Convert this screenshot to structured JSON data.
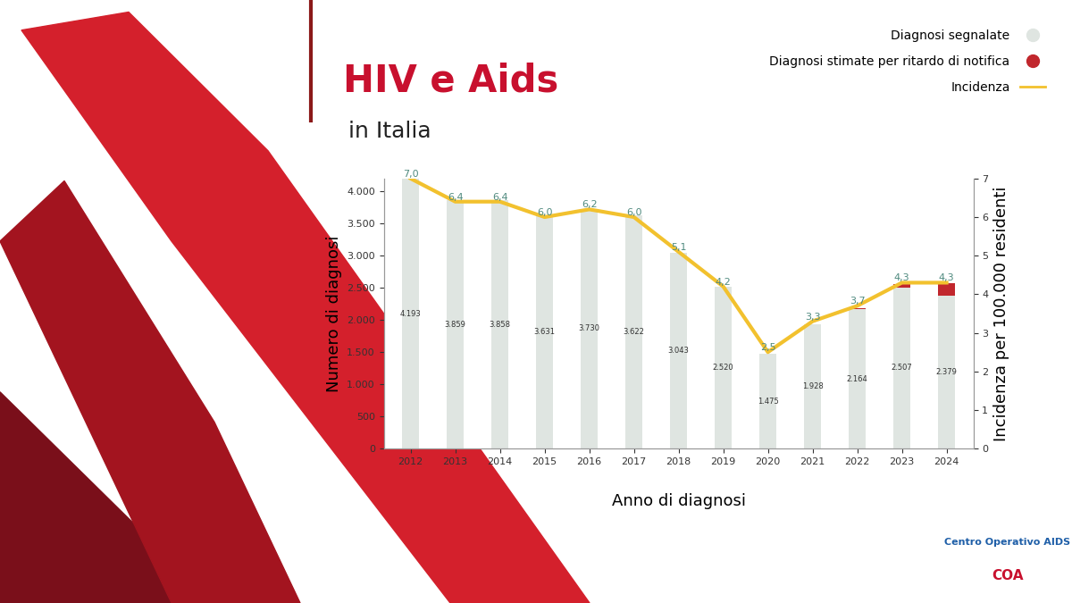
{
  "chart_data": {
    "type": "bar",
    "title": "HIV e Aids",
    "subtitle": "in Italia",
    "x_label": "Anno di diagnosi",
    "y_label": "Numero di diagnosi",
    "y2_label": "Incidenza per 100.000 residenti",
    "categories": [
      "2012",
      "2013",
      "2014",
      "2015",
      "2016",
      "2017",
      "2018",
      "2019",
      "2020",
      "2021",
      "2022",
      "2023",
      "2024"
    ],
    "stacked": true,
    "legend": "upper right",
    "grid": false,
    "series": [
      {
        "name": "Diagnosi segnalate",
        "type": "bar",
        "color": "#dfe5e1",
        "data_labels": true,
        "values": [
          4193,
          3859,
          3858,
          3631,
          3730,
          3622,
          3043,
          2520,
          1475,
          1928,
          2164,
          2507,
          2379
        ],
        "value_labels": [
          "4.193",
          "3.859",
          "3.858",
          "3.631",
          "3.730",
          "3.622",
          "3.043",
          "2.520",
          "1.475",
          "1.928",
          "2.164",
          "2.507",
          "2.379"
        ]
      },
      {
        "name": "Diagnosi stimate per ritardo di notifica",
        "type": "bar",
        "color": "#c1272d",
        "data_labels": false,
        "values": [
          0,
          0,
          0,
          0,
          0,
          0,
          0,
          0,
          0,
          0,
          25,
          50,
          190
        ]
      },
      {
        "name": "Incidenza",
        "type": "line",
        "axis": "y2",
        "color": "#f2c12e",
        "data_labels": true,
        "values": [
          7.0,
          6.4,
          6.4,
          6.0,
          6.2,
          6.0,
          5.1,
          4.2,
          2.5,
          3.3,
          3.7,
          4.3,
          4.3
        ],
        "value_labels": [
          "7,0",
          "6,4",
          "6,4",
          "6,0",
          "6,2",
          "6,0",
          "5,1",
          "4,2",
          "2,5",
          "3,3",
          "3,7",
          "4,3",
          "4,3"
        ]
      }
    ],
    "ylim": [
      0,
      4200
    ],
    "yticks": [
      0,
      500,
      {
        "value": 1000,
        "label": "1.000"
      },
      {
        "value": 1500,
        "label": "1.500"
      },
      {
        "value": 2000,
        "label": "2.000"
      },
      {
        "value": 2500,
        "label": "2.500"
      },
      {
        "value": 3000,
        "label": "3.000"
      },
      {
        "value": 3500,
        "label": "3.500"
      },
      {
        "value": 4000,
        "label": "4.000"
      }
    ],
    "y2lim": [
      0,
      7
    ],
    "y2ticks": [
      0,
      1,
      2,
      3,
      4,
      5,
      6,
      7
    ],
    "annotations": [
      "Centro Operativo AIDS",
      "COA"
    ]
  }
}
